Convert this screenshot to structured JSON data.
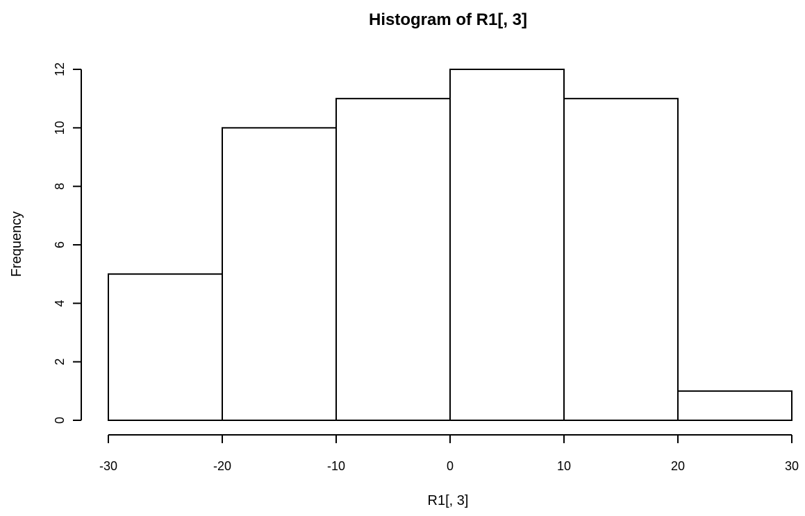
{
  "chart_data": {
    "type": "bar",
    "title": "Histogram of R1[, 3]",
    "xlabel": "R1[, 3]",
    "ylabel": "Frequency",
    "bins": [
      {
        "from": -30,
        "to": -20,
        "count": 5
      },
      {
        "from": -20,
        "to": -10,
        "count": 10
      },
      {
        "from": -10,
        "to": 0,
        "count": 11
      },
      {
        "from": 0,
        "to": 10,
        "count": 12
      },
      {
        "from": 10,
        "to": 20,
        "count": 11
      },
      {
        "from": 20,
        "to": 30,
        "count": 1
      }
    ],
    "xlim": [
      -30,
      30
    ],
    "ylim": [
      0,
      12
    ],
    "x_ticks": [
      -30,
      -20,
      -10,
      0,
      10,
      20,
      30
    ],
    "y_ticks": [
      0,
      2,
      4,
      6,
      8,
      10,
      12
    ],
    "grid": false
  }
}
